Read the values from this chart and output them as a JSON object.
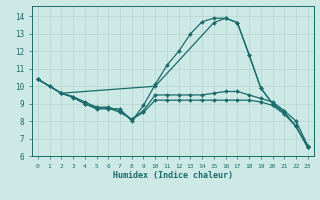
{
  "xlabel": "Humidex (Indice chaleur)",
  "xlim": [
    -0.5,
    23.5
  ],
  "ylim": [
    6,
    14.6
  ],
  "yticks": [
    6,
    7,
    8,
    9,
    10,
    11,
    12,
    13,
    14
  ],
  "xticks": [
    0,
    1,
    2,
    3,
    4,
    5,
    6,
    7,
    8,
    9,
    10,
    11,
    12,
    13,
    14,
    15,
    16,
    17,
    18,
    19,
    20,
    21,
    22,
    23
  ],
  "bg_color": "#cce9e5",
  "grid_color": "#b8d8d4",
  "line_color": "#1a6b6b",
  "lines": [
    {
      "x": [
        0,
        1,
        2,
        3,
        4,
        5,
        6,
        7,
        8,
        9,
        10,
        11,
        12,
        13,
        14,
        15,
        16,
        17,
        18,
        19,
        20,
        21,
        22,
        23
      ],
      "y": [
        10.4,
        10.0,
        9.6,
        9.4,
        9.0,
        8.7,
        8.7,
        8.7,
        8.0,
        8.9,
        10.1,
        11.2,
        12.0,
        13.0,
        13.7,
        13.9,
        13.9,
        13.65,
        11.8,
        9.9,
        9.0,
        8.5,
        7.7,
        6.5
      ]
    },
    {
      "x": [
        0,
        1,
        2,
        10,
        15,
        16,
        17,
        18,
        19,
        20,
        21,
        22,
        23
      ],
      "y": [
        10.4,
        10.0,
        9.6,
        10.0,
        13.65,
        13.9,
        13.65,
        11.8,
        9.9,
        9.0,
        8.5,
        7.7,
        6.5
      ]
    },
    {
      "x": [
        0,
        2,
        3,
        4,
        5,
        6,
        7,
        8,
        9,
        10,
        11,
        12,
        13,
        14,
        15,
        16,
        17,
        18,
        19,
        20,
        21,
        22,
        23
      ],
      "y": [
        10.4,
        9.6,
        9.4,
        9.1,
        8.8,
        8.8,
        8.6,
        8.1,
        8.6,
        9.5,
        9.5,
        9.5,
        9.5,
        9.5,
        9.6,
        9.7,
        9.7,
        9.5,
        9.3,
        9.1,
        8.6,
        8.0,
        6.6
      ]
    },
    {
      "x": [
        0,
        2,
        3,
        4,
        5,
        6,
        7,
        8,
        9,
        10,
        11,
        12,
        13,
        14,
        15,
        16,
        17,
        18,
        19,
        20,
        21,
        22,
        23
      ],
      "y": [
        10.4,
        9.6,
        9.35,
        9.0,
        8.75,
        8.75,
        8.5,
        8.1,
        8.5,
        9.2,
        9.2,
        9.2,
        9.2,
        9.2,
        9.2,
        9.2,
        9.2,
        9.2,
        9.1,
        8.9,
        8.4,
        7.7,
        6.5
      ]
    }
  ]
}
